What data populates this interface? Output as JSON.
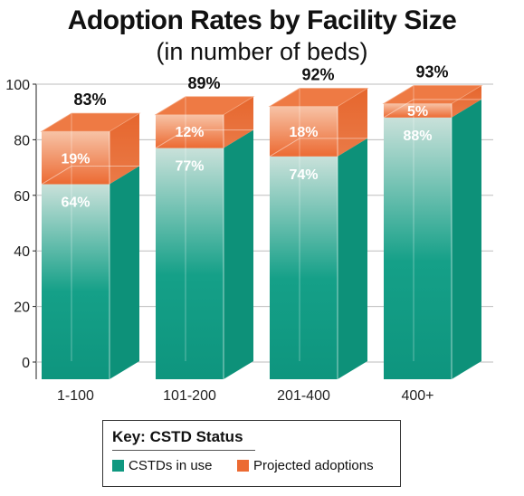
{
  "chart_data": {
    "type": "bar",
    "stacked": true,
    "title": "Adoption Rates by Facility Size",
    "subtitle": "(in number of beds)",
    "categories": [
      "1-100",
      "101-200",
      "201-400",
      "400+"
    ],
    "series": [
      {
        "name": "CSTDs in use",
        "values": [
          64,
          77,
          74,
          88
        ],
        "labels": [
          "64%",
          "77%",
          "74%",
          "88%"
        ],
        "color": "#0f9880"
      },
      {
        "name": "Projected adoptions",
        "values": [
          19,
          12,
          18,
          5
        ],
        "labels": [
          "19%",
          "12%",
          "18%",
          "5%"
        ],
        "color": "#ec6a32"
      }
    ],
    "totals": [
      83,
      89,
      92,
      93
    ],
    "total_labels": [
      "83%",
      "89%",
      "92%",
      "93%"
    ],
    "yticks": [
      0,
      20,
      40,
      60,
      80,
      100
    ],
    "ylim": [
      0,
      100
    ],
    "grid": true,
    "legend": {
      "title": "Key: CSTD Status",
      "placement": "bottom"
    }
  }
}
